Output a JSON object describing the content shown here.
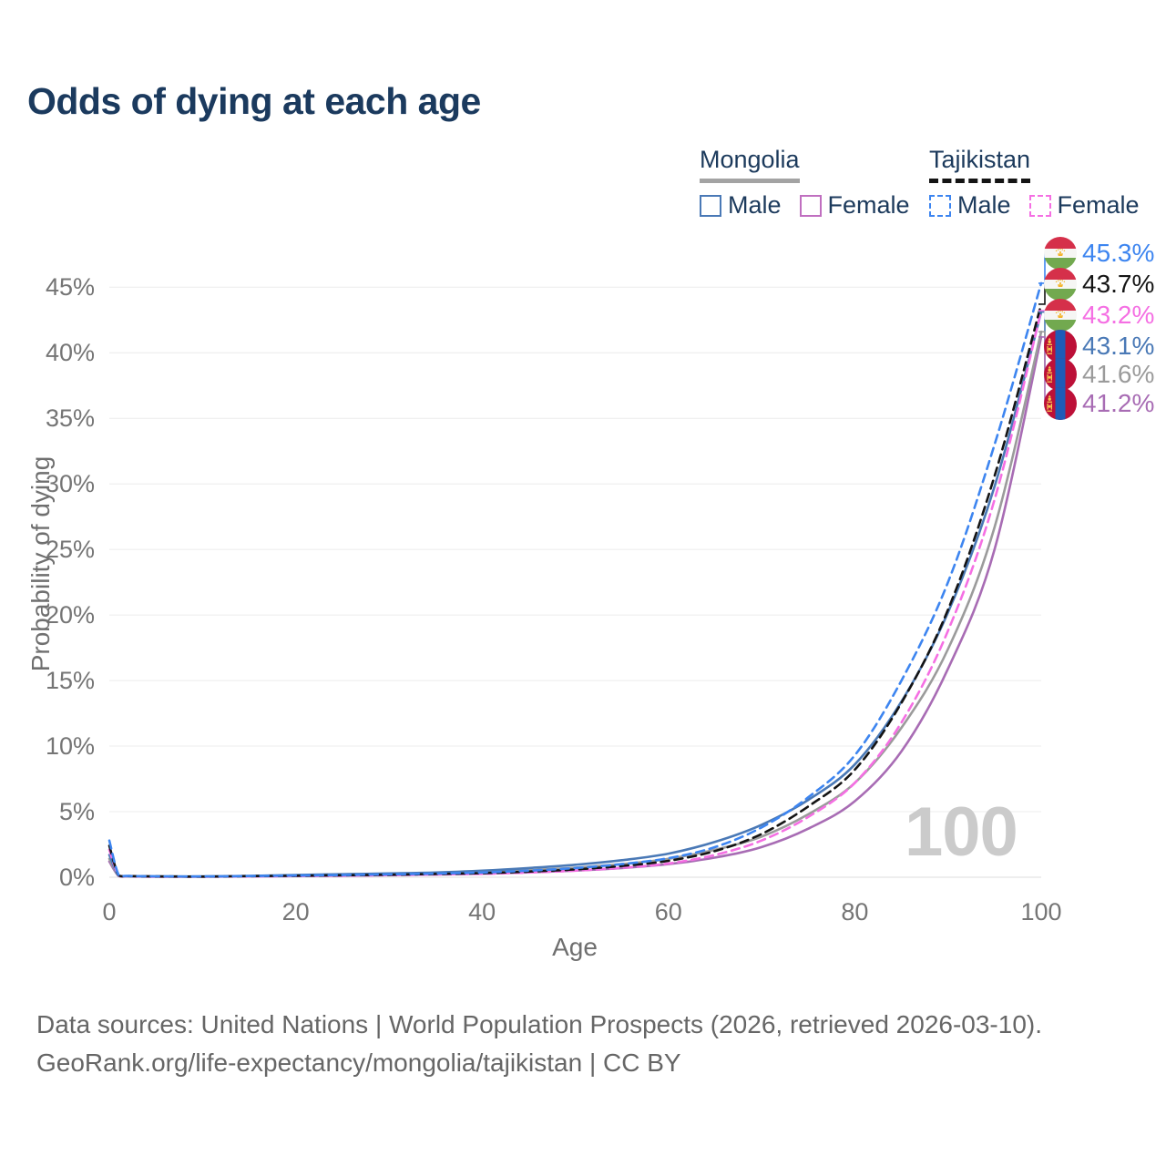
{
  "title": "Odds of dying at each age",
  "watermark": "100",
  "footer": {
    "line1": "Data sources: United Nations | World Population Prospects (2026, retrieved 2026-03-10).",
    "line2": "GeoRank.org/life-expectancy/mongolia/tajikistan | CC BY"
  },
  "legend": {
    "groups": [
      {
        "country": "Mongolia",
        "line_style": "solid",
        "line_color": "#a3a3a3",
        "items": [
          {
            "label": "Male",
            "color": "#4a79b6",
            "dashed": false
          },
          {
            "label": "Female",
            "color": "#c06fc0",
            "dashed": false
          }
        ]
      },
      {
        "country": "Tajikistan",
        "line_style": "dashed",
        "line_color": "#141414",
        "items": [
          {
            "label": "Male",
            "color": "#3d85f0",
            "dashed": true
          },
          {
            "label": "Female",
            "color": "#f56fe3",
            "dashed": true
          }
        ]
      }
    ]
  },
  "chart_data": {
    "type": "line",
    "title": "Odds of dying at each age",
    "xlabel": "Age",
    "ylabel": "Probability of dying",
    "xlim": [
      0,
      100
    ],
    "ylim": [
      0,
      47
    ],
    "xticks": [
      0,
      20,
      40,
      60,
      80,
      100
    ],
    "yticks": [
      0,
      5,
      10,
      15,
      20,
      25,
      30,
      35,
      40,
      45
    ],
    "ytick_suffix": "%",
    "grid": true,
    "hover_age": 100,
    "ages": [
      0,
      1,
      2,
      5,
      10,
      15,
      20,
      25,
      30,
      35,
      40,
      45,
      50,
      55,
      60,
      65,
      70,
      75,
      80,
      85,
      90,
      95,
      100
    ],
    "series": [
      {
        "name": "Mongolia — Female",
        "country": "Mongolia",
        "sex": "Female",
        "color": "#a86cb4",
        "dashed": false,
        "end_label": "41.2%",
        "values": [
          1.2,
          0.1,
          0.06,
          0.04,
          0.04,
          0.06,
          0.09,
          0.12,
          0.16,
          0.21,
          0.27,
          0.37,
          0.51,
          0.7,
          1.0,
          1.5,
          2.3,
          3.7,
          5.8,
          9.6,
          15.9,
          25.0,
          41.2
        ]
      },
      {
        "name": "Mongolia — Both sexes",
        "country": "Mongolia",
        "sex": "Both",
        "color": "#9b9b9b",
        "dashed": false,
        "end_label": "41.6%",
        "values": [
          1.4,
          0.11,
          0.07,
          0.05,
          0.05,
          0.08,
          0.13,
          0.17,
          0.22,
          0.28,
          0.38,
          0.53,
          0.73,
          1.0,
          1.4,
          2.1,
          3.1,
          4.8,
          7.2,
          11.4,
          17.4,
          26.7,
          41.6
        ]
      },
      {
        "name": "Mongolia — Male",
        "country": "Mongolia",
        "sex": "Male",
        "color": "#4a79b6",
        "dashed": false,
        "end_label": "43.1%",
        "values": [
          1.7,
          0.13,
          0.08,
          0.06,
          0.06,
          0.1,
          0.17,
          0.23,
          0.29,
          0.36,
          0.5,
          0.7,
          0.95,
          1.3,
          1.8,
          2.7,
          4.0,
          5.9,
          8.6,
          13.4,
          20.2,
          29.8,
          43.1
        ]
      },
      {
        "name": "Tajikistan — Female",
        "country": "Tajikistan",
        "sex": "Female",
        "color": "#f56fe3",
        "dashed": true,
        "end_label": "43.2%",
        "values": [
          2.1,
          0.14,
          0.08,
          0.05,
          0.05,
          0.06,
          0.09,
          0.12,
          0.16,
          0.21,
          0.26,
          0.36,
          0.5,
          0.72,
          1.05,
          1.7,
          2.8,
          4.6,
          7.2,
          11.8,
          18.8,
          28.8,
          43.2
        ]
      },
      {
        "name": "Tajikistan — Both sexes",
        "country": "Tajikistan",
        "sex": "Both",
        "color": "#141414",
        "dashed": true,
        "end_label": "43.7%",
        "values": [
          2.4,
          0.16,
          0.09,
          0.06,
          0.05,
          0.08,
          0.11,
          0.15,
          0.19,
          0.25,
          0.31,
          0.43,
          0.6,
          0.86,
          1.25,
          2.0,
          3.3,
          5.4,
          8.2,
          13.3,
          20.4,
          30.6,
          43.7
        ]
      },
      {
        "name": "Tajikistan — Male",
        "country": "Tajikistan",
        "sex": "Male",
        "color": "#3d85f0",
        "dashed": true,
        "end_label": "45.3%",
        "values": [
          2.8,
          0.18,
          0.1,
          0.07,
          0.06,
          0.09,
          0.13,
          0.17,
          0.22,
          0.28,
          0.36,
          0.5,
          0.7,
          1.0,
          1.45,
          2.3,
          3.8,
          6.1,
          9.3,
          15.0,
          22.5,
          33.0,
          45.3
        ]
      }
    ],
    "end_labels": [
      {
        "label": "45.3%",
        "value": 45.3,
        "color": "#3d85f0",
        "country": "Tajikistan",
        "series": "Tajikistan — Male"
      },
      {
        "label": "43.7%",
        "value": 43.7,
        "color": "#141414",
        "country": "Tajikistan",
        "series": "Tajikistan — Both sexes"
      },
      {
        "label": "43.2%",
        "value": 43.2,
        "color": "#f56fe3",
        "country": "Tajikistan",
        "series": "Tajikistan — Female"
      },
      {
        "label": "43.1%",
        "value": 43.1,
        "color": "#4a79b6",
        "country": "Mongolia",
        "series": "Mongolia — Male"
      },
      {
        "label": "41.6%",
        "value": 41.6,
        "color": "#9b9b9b",
        "country": "Mongolia",
        "series": "Mongolia — Both sexes"
      },
      {
        "label": "41.2%",
        "value": 41.2,
        "color": "#a86cb4",
        "country": "Mongolia",
        "series": "Mongolia — Female"
      }
    ]
  }
}
